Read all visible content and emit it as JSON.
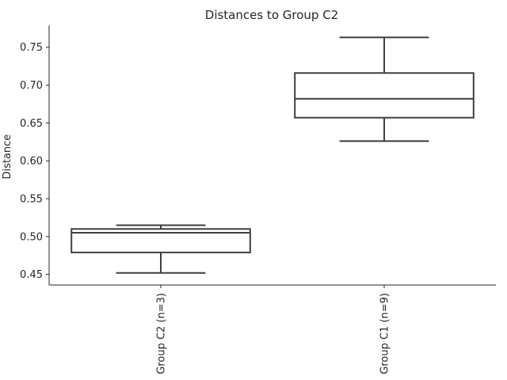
{
  "chart_data": {
    "type": "box",
    "title": "Distances to Group C2",
    "xlabel": "",
    "ylabel": "Distance",
    "ylim": [
      0.436,
      0.779
    ],
    "yticks": [
      0.45,
      0.5,
      0.55,
      0.6,
      0.65,
      0.7,
      0.75
    ],
    "ytick_labels": [
      "0.45",
      "0.50",
      "0.55",
      "0.60",
      "0.65",
      "0.70",
      "0.75"
    ],
    "categories": [
      "Group C2 (n=3)",
      "Group C1 (n=9)"
    ],
    "boxes": [
      {
        "whislo": 0.452,
        "q1": 0.479,
        "med": 0.505,
        "q3": 0.51,
        "whishi": 0.515
      },
      {
        "whislo": 0.626,
        "q1": 0.657,
        "med": 0.682,
        "q3": 0.716,
        "whishi": 0.763
      }
    ],
    "grid": false,
    "colors": {
      "line": "#3f3f3f",
      "spine": "#262626",
      "background": "#ffffff"
    }
  }
}
